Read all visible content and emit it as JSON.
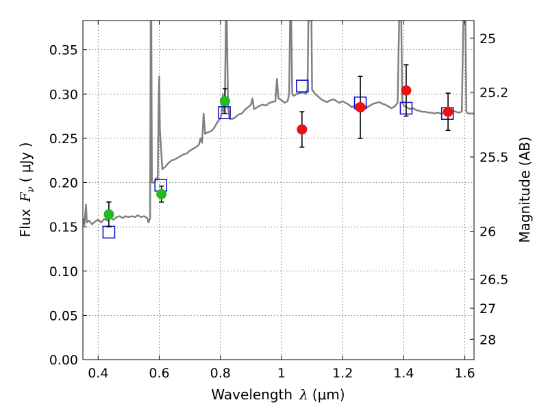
{
  "chart_data": {
    "type": "scatter",
    "xlabel": {
      "text": "Wavelength",
      "symbol": "λ",
      "unit": "(μm)"
    },
    "ylabel": {
      "text": "Flux",
      "symbol": "F",
      "subscript": "ν",
      "unit": "( μJy )"
    },
    "y2label": "Magnitude (AB)",
    "xlim": [
      0.35,
      1.63
    ],
    "ylim": [
      0.0,
      0.383
    ],
    "grid": true,
    "x_ticks": [
      0.4,
      0.6,
      0.8,
      1.0,
      1.2,
      1.4,
      1.6
    ],
    "x_tick_labels": [
      "0.4",
      "0.6",
      "0.8",
      "1",
      "1.2",
      "1.4",
      "1.6"
    ],
    "y_ticks": [
      0.0,
      0.05,
      0.1,
      0.15,
      0.2,
      0.25,
      0.3,
      0.35
    ],
    "y_tick_labels": [
      "0.00",
      "0.05",
      "0.10",
      "0.15",
      "0.20",
      "0.25",
      "0.30",
      "0.35"
    ],
    "y2_ticks": [
      {
        "label": "25",
        "flux": 0.363
      },
      {
        "label": "25.2",
        "flux": 0.302
      },
      {
        "label": "25.5",
        "flux": 0.229
      },
      {
        "label": "26",
        "flux": 0.145
      },
      {
        "label": "26.5",
        "flux": 0.091
      },
      {
        "label": "27",
        "flux": 0.058
      },
      {
        "label": "28",
        "flux": 0.023
      }
    ],
    "colors": {
      "model": "#808080",
      "green": "#22bb22",
      "red": "#ee1111",
      "square": "#1111cc",
      "error": "#000000"
    },
    "series": [
      {
        "kind": "line",
        "points": [
          [
            0.35,
            0.16
          ],
          [
            0.355,
            0.152
          ],
          [
            0.36,
            0.175
          ],
          [
            0.363,
            0.155
          ],
          [
            0.37,
            0.157
          ],
          [
            0.38,
            0.153
          ],
          [
            0.39,
            0.156
          ],
          [
            0.4,
            0.158
          ],
          [
            0.41,
            0.155
          ],
          [
            0.42,
            0.159
          ],
          [
            0.43,
            0.157
          ],
          [
            0.44,
            0.16
          ],
          [
            0.45,
            0.158
          ],
          [
            0.46,
            0.161
          ],
          [
            0.47,
            0.162
          ],
          [
            0.48,
            0.16
          ],
          [
            0.49,
            0.162
          ],
          [
            0.5,
            0.161
          ],
          [
            0.51,
            0.162
          ],
          [
            0.52,
            0.161
          ],
          [
            0.53,
            0.163
          ],
          [
            0.54,
            0.161
          ],
          [
            0.55,
            0.162
          ],
          [
            0.56,
            0.16
          ],
          [
            0.565,
            0.155
          ],
          [
            0.57,
            0.16
          ],
          [
            0.572,
            0.383
          ],
          [
            0.574,
            0.383
          ],
          [
            0.576,
            0.2
          ],
          [
            0.585,
            0.2
          ],
          [
            0.59,
            0.205
          ],
          [
            0.595,
            0.203
          ],
          [
            0.598,
            0.29
          ],
          [
            0.6,
            0.32
          ],
          [
            0.602,
            0.26
          ],
          [
            0.61,
            0.215
          ],
          [
            0.62,
            0.218
          ],
          [
            0.63,
            0.222
          ],
          [
            0.64,
            0.225
          ],
          [
            0.65,
            0.226
          ],
          [
            0.66,
            0.228
          ],
          [
            0.67,
            0.23
          ],
          [
            0.68,
            0.232
          ],
          [
            0.69,
            0.233
          ],
          [
            0.7,
            0.236
          ],
          [
            0.71,
            0.238
          ],
          [
            0.72,
            0.24
          ],
          [
            0.73,
            0.243
          ],
          [
            0.735,
            0.25
          ],
          [
            0.74,
            0.245
          ],
          [
            0.745,
            0.278
          ],
          [
            0.75,
            0.255
          ],
          [
            0.76,
            0.257
          ],
          [
            0.77,
            0.258
          ],
          [
            0.78,
            0.262
          ],
          [
            0.79,
            0.268
          ],
          [
            0.8,
            0.273
          ],
          [
            0.805,
            0.279
          ],
          [
            0.808,
            0.3
          ],
          [
            0.812,
            0.28
          ],
          [
            0.815,
            0.3
          ],
          [
            0.818,
            0.383
          ],
          [
            0.821,
            0.383
          ],
          [
            0.825,
            0.285
          ],
          [
            0.83,
            0.272
          ],
          [
            0.84,
            0.272
          ],
          [
            0.85,
            0.274
          ],
          [
            0.86,
            0.277
          ],
          [
            0.87,
            0.278
          ],
          [
            0.88,
            0.282
          ],
          [
            0.89,
            0.285
          ],
          [
            0.9,
            0.288
          ],
          [
            0.905,
            0.295
          ],
          [
            0.91,
            0.283
          ],
          [
            0.92,
            0.285
          ],
          [
            0.93,
            0.287
          ],
          [
            0.94,
            0.288
          ],
          [
            0.95,
            0.287
          ],
          [
            0.96,
            0.29
          ],
          [
            0.97,
            0.291
          ],
          [
            0.98,
            0.292
          ],
          [
            0.985,
            0.317
          ],
          [
            0.99,
            0.295
          ],
          [
            1.0,
            0.293
          ],
          [
            1.01,
            0.29
          ],
          [
            1.02,
            0.292
          ],
          [
            1.025,
            0.3
          ],
          [
            1.028,
            0.383
          ],
          [
            1.032,
            0.383
          ],
          [
            1.035,
            0.3
          ],
          [
            1.04,
            0.298
          ],
          [
            1.05,
            0.3
          ],
          [
            1.06,
            0.301
          ],
          [
            1.07,
            0.302
          ],
          [
            1.08,
            0.3
          ],
          [
            1.085,
            0.305
          ],
          [
            1.088,
            0.383
          ],
          [
            1.098,
            0.383
          ],
          [
            1.1,
            0.305
          ],
          [
            1.11,
            0.3
          ],
          [
            1.12,
            0.297
          ],
          [
            1.13,
            0.294
          ],
          [
            1.14,
            0.292
          ],
          [
            1.15,
            0.291
          ],
          [
            1.16,
            0.293
          ],
          [
            1.17,
            0.294
          ],
          [
            1.18,
            0.292
          ],
          [
            1.19,
            0.29
          ],
          [
            1.2,
            0.292
          ],
          [
            1.21,
            0.29
          ],
          [
            1.22,
            0.288
          ],
          [
            1.23,
            0.285
          ],
          [
            1.24,
            0.287
          ],
          [
            1.25,
            0.289
          ],
          [
            1.26,
            0.288
          ],
          [
            1.27,
            0.287
          ],
          [
            1.28,
            0.285
          ],
          [
            1.29,
            0.287
          ],
          [
            1.3,
            0.289
          ],
          [
            1.31,
            0.29
          ],
          [
            1.32,
            0.291
          ],
          [
            1.33,
            0.289
          ],
          [
            1.34,
            0.288
          ],
          [
            1.35,
            0.286
          ],
          [
            1.36,
            0.284
          ],
          [
            1.37,
            0.286
          ],
          [
            1.38,
            0.29
          ],
          [
            1.385,
            0.383
          ],
          [
            1.392,
            0.383
          ],
          [
            1.395,
            0.292
          ],
          [
            1.4,
            0.287
          ],
          [
            1.41,
            0.285
          ],
          [
            1.42,
            0.283
          ],
          [
            1.43,
            0.284
          ],
          [
            1.44,
            0.282
          ],
          [
            1.45,
            0.281
          ],
          [
            1.46,
            0.28
          ],
          [
            1.47,
            0.28
          ],
          [
            1.48,
            0.279
          ],
          [
            1.49,
            0.279
          ],
          [
            1.5,
            0.278
          ],
          [
            1.51,
            0.279
          ],
          [
            1.52,
            0.278
          ],
          [
            1.53,
            0.278
          ],
          [
            1.54,
            0.279
          ],
          [
            1.55,
            0.28
          ],
          [
            1.56,
            0.281
          ],
          [
            1.57,
            0.28
          ],
          [
            1.58,
            0.279
          ],
          [
            1.59,
            0.28
          ],
          [
            1.595,
            0.383
          ],
          [
            1.602,
            0.383
          ],
          [
            1.605,
            0.28
          ],
          [
            1.61,
            0.278
          ],
          [
            1.62,
            0.278
          ],
          [
            1.63,
            0.278
          ]
        ]
      },
      {
        "kind": "squares",
        "points": [
          [
            0.435,
            0.144
          ],
          [
            0.605,
            0.197
          ],
          [
            0.813,
            0.279
          ],
          [
            1.068,
            0.309
          ],
          [
            1.258,
            0.29
          ],
          [
            1.408,
            0.284
          ],
          [
            1.543,
            0.278
          ]
        ]
      },
      {
        "kind": "points-green",
        "points": [
          {
            "x": 0.435,
            "y": 0.164,
            "err": 0.014
          },
          {
            "x": 0.607,
            "y": 0.187,
            "err": 0.009
          },
          {
            "x": 0.815,
            "y": 0.292,
            "err": 0.014
          }
        ]
      },
      {
        "kind": "points-red",
        "points": [
          {
            "x": 1.067,
            "y": 0.26,
            "err": 0.02
          },
          {
            "x": 1.258,
            "y": 0.285,
            "err": 0.035
          },
          {
            "x": 1.408,
            "y": 0.304,
            "err": 0.029
          },
          {
            "x": 1.545,
            "y": 0.28,
            "err": 0.021
          }
        ]
      }
    ]
  }
}
